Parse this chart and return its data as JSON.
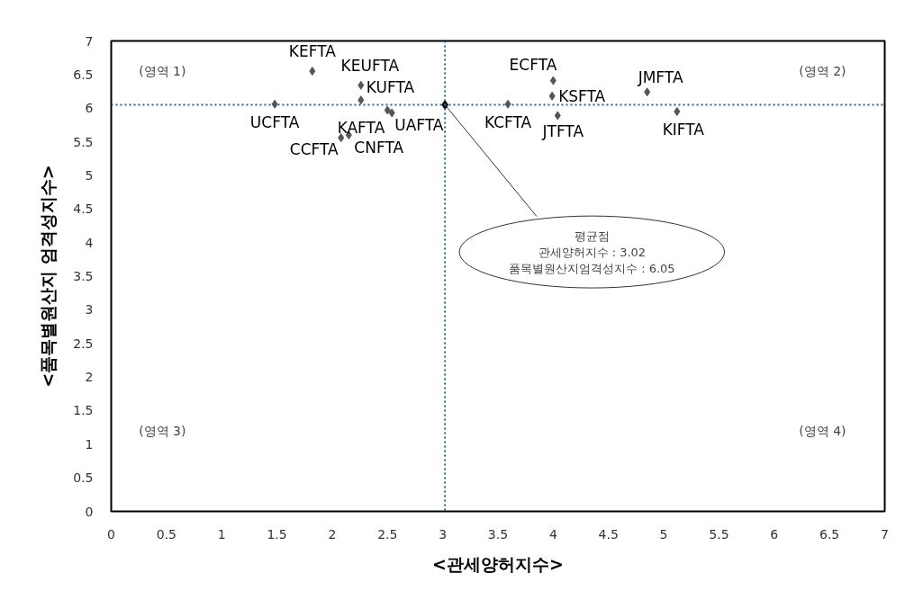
{
  "chart_data": {
    "type": "scatter",
    "xlabel": "<관세양허지수>",
    "ylabel": "<품목별원산지 엄격성지수>",
    "xlim": [
      0,
      7
    ],
    "ylim": [
      0,
      7
    ],
    "xticks": [
      0,
      0.5,
      1,
      1.5,
      2,
      2.5,
      3,
      3.5,
      4,
      4.5,
      5,
      5.5,
      6,
      6.5,
      7
    ],
    "yticks": [
      0,
      0.5,
      1,
      1.5,
      2,
      2.5,
      3,
      3.5,
      4,
      4.5,
      5,
      5.5,
      6,
      6.5,
      7
    ],
    "grid": false,
    "marker": "diamond",
    "series": [
      {
        "name": "KEFTA",
        "color": "#555555",
        "x": [
          1.82
        ],
        "values": [
          6.55
        ]
      },
      {
        "name": "KEUFTA",
        "color": "#555555",
        "x": [
          2.26
        ],
        "values": [
          6.34
        ]
      },
      {
        "name": "KUFTA",
        "color": "#555555",
        "x": [
          2.26
        ],
        "values": [
          6.12
        ]
      },
      {
        "name": "UCFTA",
        "color": "#555555",
        "x": [
          1.48
        ],
        "values": [
          6.06
        ]
      },
      {
        "name": "KAFTA",
        "color": "#555555",
        "x": [
          2.5
        ],
        "values": [
          5.97
        ]
      },
      {
        "name": "UAFTA",
        "color": "#555555",
        "x": [
          2.54
        ],
        "values": [
          5.93
        ]
      },
      {
        "name": "CCFTA",
        "color": "#555555",
        "x": [
          2.08
        ],
        "values": [
          5.56
        ]
      },
      {
        "name": "CNFTA",
        "color": "#555555",
        "x": [
          2.15
        ],
        "values": [
          5.6
        ]
      },
      {
        "name": "KCFTA",
        "color": "#555555",
        "x": [
          3.59
        ],
        "values": [
          6.06
        ]
      },
      {
        "name": "ECFTA",
        "color": "#555555",
        "x": [
          4.0
        ],
        "values": [
          6.41
        ]
      },
      {
        "name": "KSFTA",
        "color": "#555555",
        "x": [
          3.99
        ],
        "values": [
          6.18
        ]
      },
      {
        "name": "JTFTA",
        "color": "#555555",
        "x": [
          4.04
        ],
        "values": [
          5.89
        ]
      },
      {
        "name": "JMFTA",
        "color": "#555555",
        "x": [
          4.85
        ],
        "values": [
          6.24
        ]
      },
      {
        "name": "KIFTA",
        "color": "#555555",
        "x": [
          5.12
        ],
        "values": [
          5.95
        ]
      }
    ],
    "ref_lines": [
      {
        "axis": "x",
        "value": 3.02,
        "color": "#2e5f8a",
        "line_style": "dotted"
      },
      {
        "axis": "y",
        "value": 6.05,
        "color": "#2e5f8a",
        "line_style": "dotted"
      }
    ],
    "annotations": [
      "(영역 1)",
      "(영역 2)",
      "(영역 3)",
      "(영역 4)",
      {
        "text": "평균점\n관세양허지수 : 3.02\n품목별원산지엄격성지수 : 6.05",
        "x": 3.02,
        "y": 6.05
      }
    ]
  }
}
